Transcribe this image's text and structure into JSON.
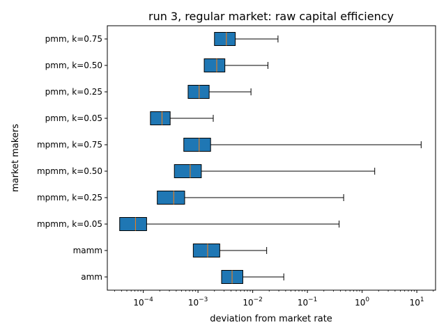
{
  "chart_data": {
    "type": "box",
    "orientation": "horizontal",
    "title": "run 3, regular market: raw capital efficiency",
    "xlabel": "deviation from market rate",
    "ylabel": "market makers",
    "xscale": "log",
    "xlim": [
      2.2e-05,
      22
    ],
    "x_ticks": [
      {
        "value": 0.0001,
        "base": "10",
        "exp": "−4"
      },
      {
        "value": 0.001,
        "base": "10",
        "exp": "−3"
      },
      {
        "value": 0.01,
        "base": "10",
        "exp": "−2"
      },
      {
        "value": 0.1,
        "base": "10",
        "exp": "−1"
      },
      {
        "value": 1,
        "base": "10",
        "exp": "0"
      },
      {
        "value": 10,
        "base": "10",
        "exp": "1"
      }
    ],
    "grid": false,
    "box_color": "#1f77b4",
    "median_color": "#ff7f0e",
    "categories": [
      "pmm, k=0.75",
      "pmm, k=0.50",
      "pmm, k=0.25",
      "pmm, k=0.05",
      "mpmm, k=0.75",
      "mpmm, k=0.50",
      "mpmm, k=0.25",
      "mpmm, k=0.05",
      "mamm",
      "amm"
    ],
    "boxes": [
      {
        "q1": 0.002,
        "median": 0.0033,
        "q3": 0.0048,
        "whisker_high": 0.029
      },
      {
        "q1": 0.0013,
        "median": 0.0022,
        "q3": 0.0031,
        "whisker_high": 0.019
      },
      {
        "q1": 0.00066,
        "median": 0.00105,
        "q3": 0.0016,
        "whisker_high": 0.0093
      },
      {
        "q1": 0.000135,
        "median": 0.00022,
        "q3": 0.00031,
        "whisker_high": 0.0019
      },
      {
        "q1": 0.00055,
        "median": 0.00105,
        "q3": 0.0017,
        "whisker_high": 12
      },
      {
        "q1": 0.00037,
        "median": 0.00072,
        "q3": 0.00115,
        "whisker_high": 1.7
      },
      {
        "q1": 0.00018,
        "median": 0.00036,
        "q3": 0.00057,
        "whisker_high": 0.46
      },
      {
        "q1": 3.7e-05,
        "median": 7.2e-05,
        "q3": 0.000115,
        "whisker_high": 0.38
      },
      {
        "q1": 0.00082,
        "median": 0.0015,
        "q3": 0.0025,
        "whisker_high": 0.018
      },
      {
        "q1": 0.0027,
        "median": 0.0042,
        "q3": 0.0066,
        "whisker_high": 0.037
      }
    ]
  }
}
